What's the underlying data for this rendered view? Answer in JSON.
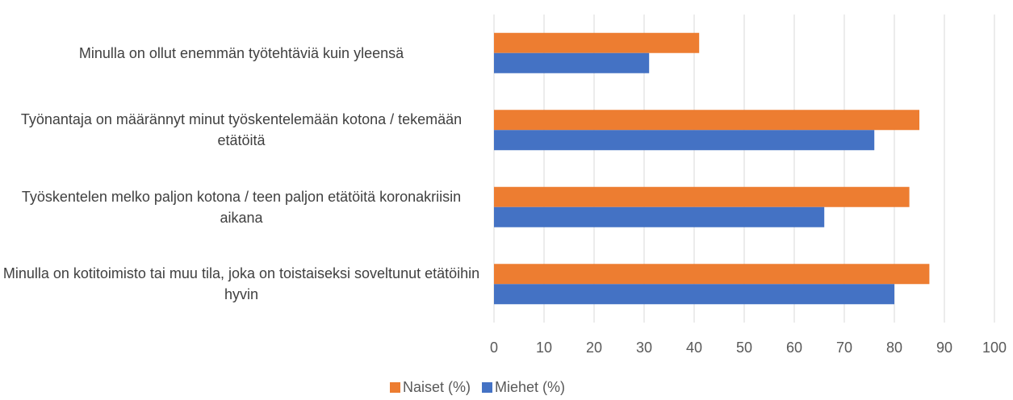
{
  "chart_data": {
    "type": "bar",
    "orientation": "horizontal",
    "categories": [
      "Minulla on ollut enemmän työtehtäviä kuin yleensä",
      "Työnantaja on määrännyt minut työskentelemään kotona / tekemään etätöitä",
      "Työskentelen melko paljon kotona / teen paljon etätöitä koronakriisin aikana",
      "Minulla on kotitoimisto tai muu tila, joka on toistaiseksi soveltunut etätöihin hyvin"
    ],
    "series": [
      {
        "name": "Naiset (%)",
        "color": "#ed7d31",
        "values": [
          41,
          85,
          83,
          87
        ]
      },
      {
        "name": "Miehet (%)",
        "color": "#4472c4",
        "values": [
          31,
          76,
          66,
          80
        ]
      }
    ],
    "xlim": [
      0,
      100
    ],
    "xticks": [
      0,
      10,
      20,
      30,
      40,
      50,
      60,
      70,
      80,
      90,
      100
    ],
    "grid": true,
    "legend": "bottom"
  }
}
